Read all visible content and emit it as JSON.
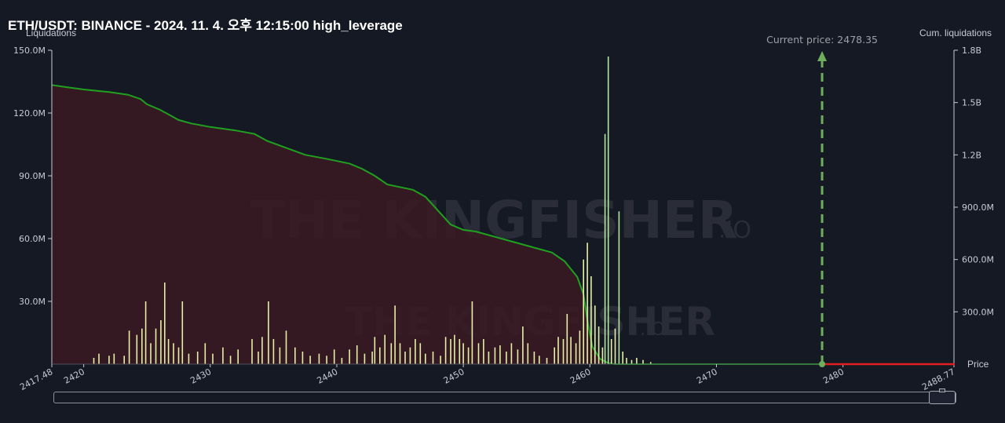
{
  "header": {
    "title": "ETH/USDT: BINANCE - 2024. 11. 4. 오후 12:15:00 high_leverage"
  },
  "chart_data": {
    "type": "bar",
    "left_axis_label": "Liquidations",
    "right_axis_label": "Cum. liquidations",
    "x_axis_label": "Price",
    "x_range": [
      2417.48,
      2488.77
    ],
    "x_ticks": [
      "2417.48",
      "2420",
      "2430",
      "2440",
      "2450",
      "2460",
      "2470",
      "2480",
      "2488.77"
    ],
    "y_left_range": [
      0,
      150000000
    ],
    "y_left_ticks": [
      "30.0M",
      "60.0M",
      "90.0M",
      "120.0M",
      "150.0M"
    ],
    "y_right_range": [
      0,
      1800000000
    ],
    "y_right_ticks": [
      "300.0M",
      "600.0M",
      "900.0M",
      "1.2B",
      "1.5B",
      "1.8B"
    ],
    "current_price_label": "Current price: 2478.35",
    "current_price": 2478.35,
    "watermark_text": "THE KINGFISHER",
    "watermark_suffix": ".IO",
    "colors": {
      "cumulative_line": "#1fa01f",
      "cumulative_fill": "#3a1a22",
      "bars": "#e6efa6",
      "tall_bars": "#b5e6a0",
      "current_price_marker": "#6fae5c",
      "above_price_line": "#e02020"
    },
    "series": [
      {
        "name": "Cum. liquidations",
        "axis": "right",
        "points": [
          [
            2417.48,
            1600000000
          ],
          [
            2418.5,
            1590000000
          ],
          [
            2420,
            1575000000
          ],
          [
            2422,
            1560000000
          ],
          [
            2423.5,
            1545000000
          ],
          [
            2424.5,
            1520000000
          ],
          [
            2425,
            1490000000
          ],
          [
            2426,
            1460000000
          ],
          [
            2427,
            1420000000
          ],
          [
            2427.5,
            1400000000
          ],
          [
            2428.5,
            1380000000
          ],
          [
            2430,
            1360000000
          ],
          [
            2432,
            1340000000
          ],
          [
            2433.5,
            1320000000
          ],
          [
            2434.5,
            1280000000
          ],
          [
            2436,
            1240000000
          ],
          [
            2437.5,
            1200000000
          ],
          [
            2439,
            1180000000
          ],
          [
            2441,
            1150000000
          ],
          [
            2442,
            1120000000
          ],
          [
            2443,
            1080000000
          ],
          [
            2444,
            1030000000
          ],
          [
            2446,
            1000000000
          ],
          [
            2447,
            960000000
          ],
          [
            2448,
            880000000
          ],
          [
            2449,
            800000000
          ],
          [
            2450,
            770000000
          ],
          [
            2451,
            760000000
          ],
          [
            2453,
            720000000
          ],
          [
            2455,
            680000000
          ],
          [
            2457,
            640000000
          ],
          [
            2458,
            590000000
          ],
          [
            2459,
            500000000
          ],
          [
            2459.5,
            400000000
          ],
          [
            2459.8,
            250000000
          ],
          [
            2460.2,
            100000000
          ],
          [
            2460.8,
            30000000
          ],
          [
            2461.5,
            5000000
          ],
          [
            2462,
            0
          ],
          [
            2478.35,
            0
          ]
        ]
      },
      {
        "name": "Liquidations",
        "axis": "left",
        "bars": [
          [
            2420.8,
            3000000
          ],
          [
            2421.2,
            5000000
          ],
          [
            2422,
            4000000
          ],
          [
            2422.4,
            5000000
          ],
          [
            2423.2,
            4000000
          ],
          [
            2423.6,
            16000000
          ],
          [
            2424.2,
            14000000
          ],
          [
            2424.6,
            17000000
          ],
          [
            2424.9,
            30000000
          ],
          [
            2425.3,
            10000000
          ],
          [
            2425.7,
            17000000
          ],
          [
            2426.1,
            21000000
          ],
          [
            2426.4,
            39000000
          ],
          [
            2426.7,
            12000000
          ],
          [
            2427.1,
            10000000
          ],
          [
            2427.5,
            8000000
          ],
          [
            2427.8,
            30000000
          ],
          [
            2428.3,
            5000000
          ],
          [
            2429,
            6000000
          ],
          [
            2429.6,
            10000000
          ],
          [
            2430.2,
            5000000
          ],
          [
            2431,
            8000000
          ],
          [
            2431.6,
            4000000
          ],
          [
            2432.2,
            7000000
          ],
          [
            2433.3,
            12000000
          ],
          [
            2433.8,
            6000000
          ],
          [
            2434.1,
            13000000
          ],
          [
            2434.6,
            30000000
          ],
          [
            2435,
            12000000
          ],
          [
            2435.5,
            8000000
          ],
          [
            2436,
            16000000
          ],
          [
            2436.7,
            8000000
          ],
          [
            2437.3,
            6000000
          ],
          [
            2437.9,
            4000000
          ],
          [
            2438.6,
            5000000
          ],
          [
            2439.2,
            4000000
          ],
          [
            2439.8,
            7000000
          ],
          [
            2440.4,
            3000000
          ],
          [
            2441,
            7000000
          ],
          [
            2441.6,
            9000000
          ],
          [
            2442.2,
            5000000
          ],
          [
            2442.8,
            6000000
          ],
          [
            2443,
            13000000
          ],
          [
            2443.4,
            8000000
          ],
          [
            2443.8,
            14000000
          ],
          [
            2444.3,
            10000000
          ],
          [
            2444.6,
            28000000
          ],
          [
            2445,
            10000000
          ],
          [
            2445.4,
            6000000
          ],
          [
            2445.8,
            8000000
          ],
          [
            2446.2,
            12000000
          ],
          [
            2446.6,
            10000000
          ],
          [
            2447,
            5000000
          ],
          [
            2447.6,
            6000000
          ],
          [
            2448.2,
            4000000
          ],
          [
            2448.6,
            13000000
          ],
          [
            2449,
            12000000
          ],
          [
            2449.3,
            14000000
          ],
          [
            2449.7,
            12000000
          ],
          [
            2450,
            10000000
          ],
          [
            2450.4,
            8000000
          ],
          [
            2450.7,
            30000000
          ],
          [
            2451.2,
            10000000
          ],
          [
            2451.6,
            12000000
          ],
          [
            2452,
            6000000
          ],
          [
            2452.5,
            8000000
          ],
          [
            2452.9,
            9000000
          ],
          [
            2453.4,
            6000000
          ],
          [
            2453.8,
            10000000
          ],
          [
            2454.3,
            7000000
          ],
          [
            2454.7,
            18000000
          ],
          [
            2455.1,
            10000000
          ],
          [
            2455.6,
            6000000
          ],
          [
            2456,
            4000000
          ],
          [
            2456.6,
            3000000
          ],
          [
            2457.2,
            8000000
          ],
          [
            2457.5,
            13000000
          ],
          [
            2457.9,
            12000000
          ],
          [
            2458.2,
            24000000
          ],
          [
            2458.5,
            13000000
          ],
          [
            2458.9,
            10000000
          ],
          [
            2459.2,
            16000000
          ],
          [
            2459.5,
            50000000
          ],
          [
            2459.8,
            58000000
          ],
          [
            2460.1,
            42000000
          ],
          [
            2460.4,
            28000000
          ],
          [
            2460.7,
            18000000
          ],
          [
            2461,
            8000000
          ],
          [
            2461.2,
            110000000
          ],
          [
            2461.45,
            147000000
          ],
          [
            2461.7,
            12000000
          ],
          [
            2462,
            17000000
          ],
          [
            2462.3,
            73000000
          ],
          [
            2462.6,
            6000000
          ],
          [
            2462.9,
            3000000
          ],
          [
            2463.3,
            2000000
          ],
          [
            2463.7,
            3000000
          ],
          [
            2464.2,
            2000000
          ],
          [
            2464.8,
            1000000
          ]
        ]
      }
    ]
  }
}
